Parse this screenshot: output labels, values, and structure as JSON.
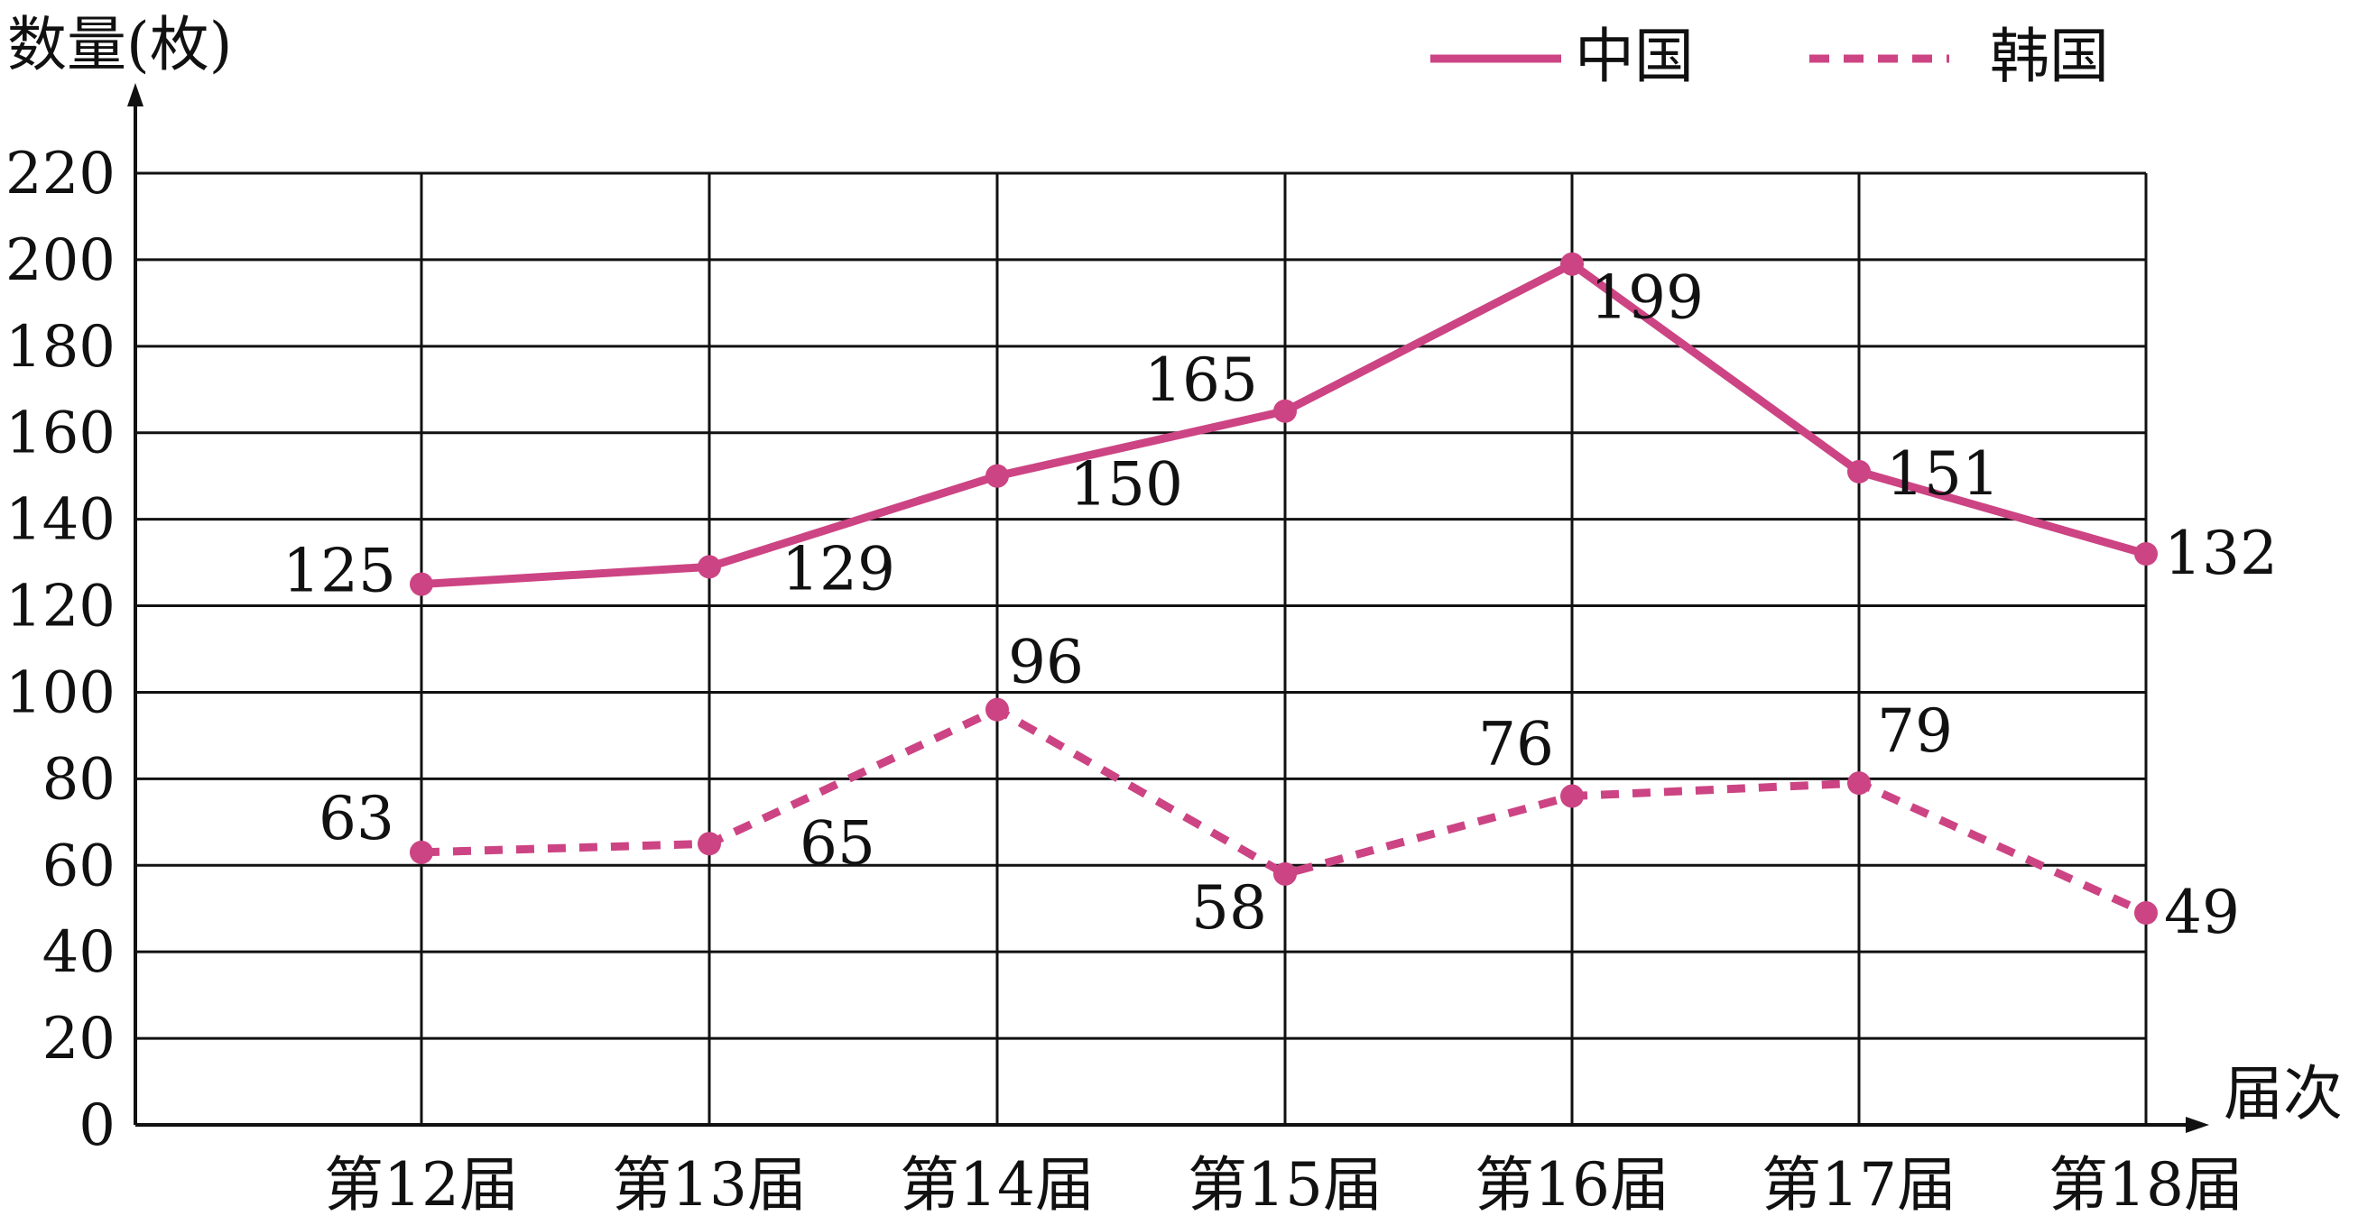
{
  "chart_data": {
    "type": "line",
    "title": "",
    "ylabel": "数量(枚)",
    "xlabel": "届次",
    "ylim": [
      0,
      220
    ],
    "yticks": [
      0,
      20,
      40,
      60,
      80,
      100,
      120,
      140,
      160,
      180,
      200,
      220
    ],
    "categories": [
      "第12届",
      "第13届",
      "第14届",
      "第15届",
      "第16届",
      "第17届",
      "第18届"
    ],
    "grid": true,
    "legend_position": "top-right",
    "series": [
      {
        "name": "中国",
        "style": "solid",
        "color": "#cc4483",
        "values": [
          125,
          129,
          150,
          165,
          199,
          151,
          132
        ]
      },
      {
        "name": "韩国",
        "style": "dashed",
        "color": "#cc4483",
        "values": [
          63,
          65,
          96,
          58,
          76,
          79,
          49
        ]
      }
    ]
  }
}
